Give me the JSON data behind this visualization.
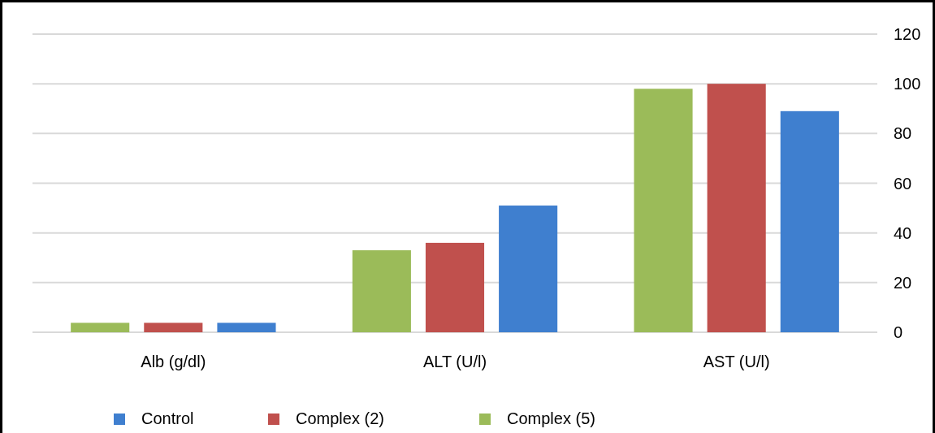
{
  "chart_data": {
    "type": "bar",
    "categories": [
      "Alb (g/dl)",
      "ALT (U/l)",
      "AST (U/l)"
    ],
    "series": [
      {
        "name": "Complex (5)",
        "color": "#9bbb59",
        "values": [
          3.8,
          33,
          98
        ]
      },
      {
        "name": "Complex (2)",
        "color": "#c0504d",
        "values": [
          3.8,
          36,
          100
        ]
      },
      {
        "name": "Control",
        "color": "#3f7fcf",
        "values": [
          3.8,
          51,
          89
        ]
      }
    ],
    "ylim": [
      0,
      120
    ],
    "yticks": [
      0,
      20,
      40,
      60,
      80,
      100,
      120
    ],
    "grid": "y",
    "legend": "bottom"
  }
}
